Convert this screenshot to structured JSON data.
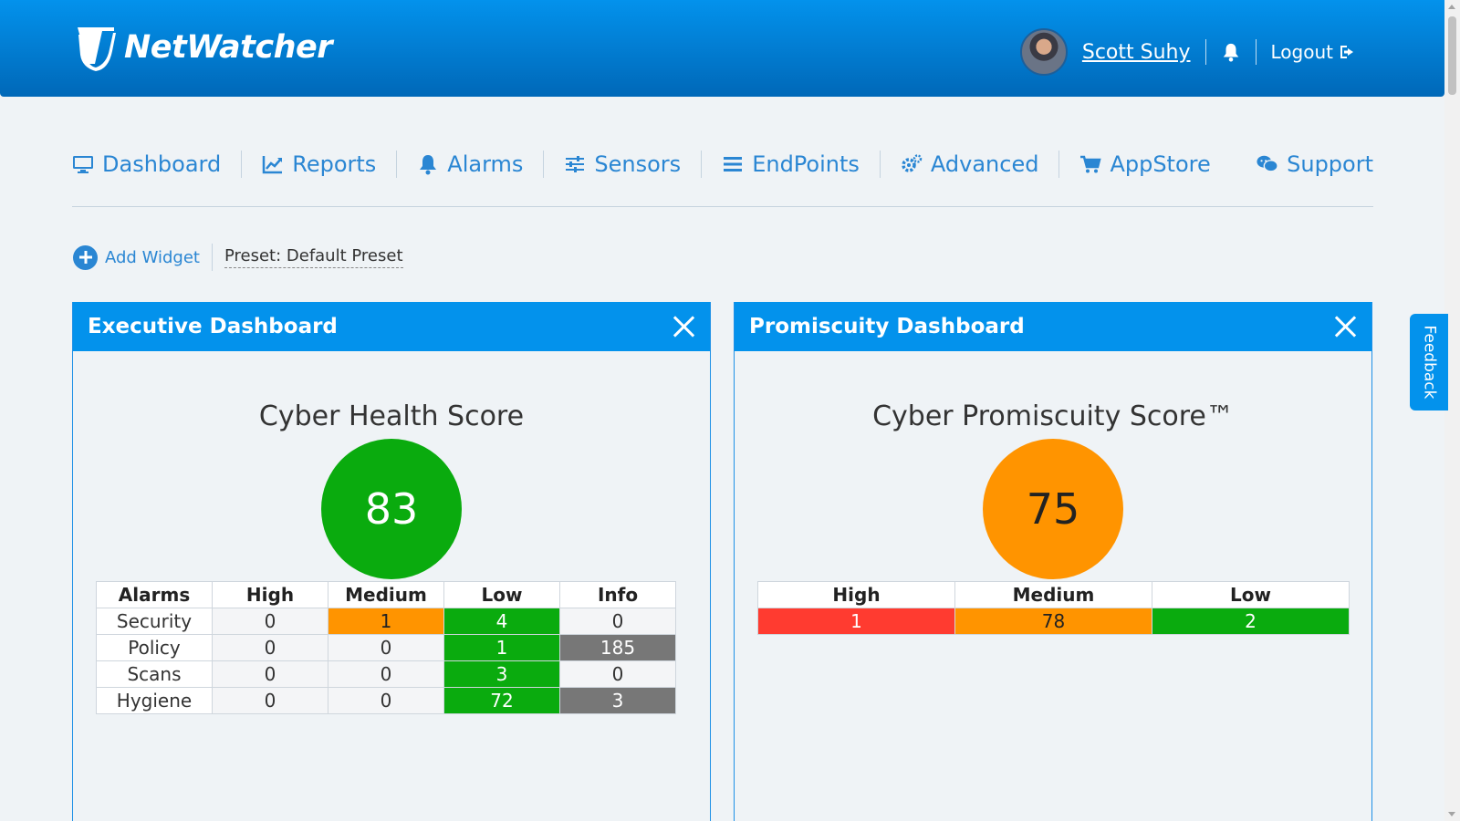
{
  "brand": {
    "name": "NetWatcher"
  },
  "header": {
    "user_name": "Scott Suhy",
    "logout_label": "Logout"
  },
  "nav": {
    "items": [
      {
        "label": "Dashboard",
        "icon": "monitor-icon"
      },
      {
        "label": "Reports",
        "icon": "chart-icon"
      },
      {
        "label": "Alarms",
        "icon": "bell-icon"
      },
      {
        "label": "Sensors",
        "icon": "sliders-icon"
      },
      {
        "label": "EndPoints",
        "icon": "list-icon"
      },
      {
        "label": "Advanced",
        "icon": "gears-icon"
      },
      {
        "label": "AppStore",
        "icon": "cart-icon"
      }
    ],
    "support_label": "Support"
  },
  "toolbar": {
    "add_widget_label": "Add Widget",
    "preset_label": "Preset: Default Preset"
  },
  "executive": {
    "title": "Executive Dashboard",
    "score_title": "Cyber Health Score",
    "score": "83",
    "headers": [
      "Alarms",
      "High",
      "Medium",
      "Low",
      "Info"
    ],
    "rows": [
      {
        "label": "Security",
        "high": "0",
        "medium": "1",
        "low": "4",
        "info": "0"
      },
      {
        "label": "Policy",
        "high": "0",
        "medium": "0",
        "low": "1",
        "info": "185"
      },
      {
        "label": "Scans",
        "high": "0",
        "medium": "0",
        "low": "3",
        "info": "0"
      },
      {
        "label": "Hygiene",
        "high": "0",
        "medium": "0",
        "low": "72",
        "info": "3"
      }
    ]
  },
  "promiscuity": {
    "title": "Promiscuity Dashboard",
    "score_title": "Cyber Promiscuity Score™",
    "score": "75",
    "headers": [
      "High",
      "Medium",
      "Low"
    ],
    "values": [
      "1",
      "78",
      "2"
    ]
  },
  "feedback_label": "Feedback",
  "colors": {
    "header_blue": "#0392ec",
    "link_blue": "#2a86d3",
    "green": "#0aab0e",
    "orange": "#ff9400",
    "red": "#ff3b30",
    "gray": "#777777"
  }
}
